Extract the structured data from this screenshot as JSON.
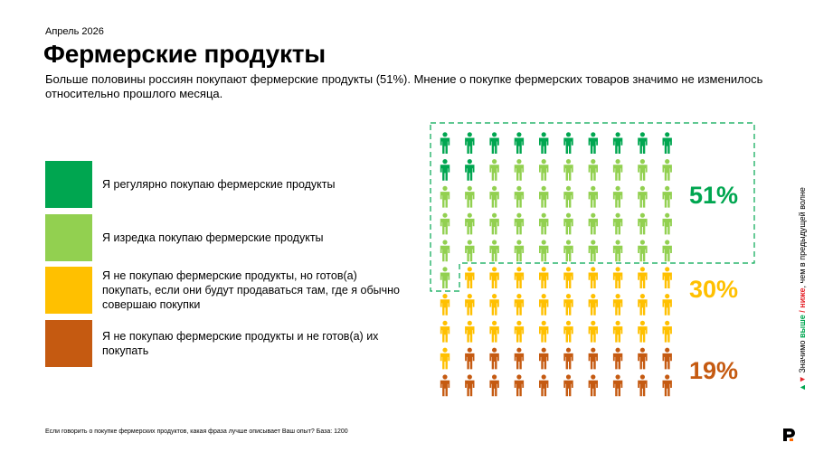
{
  "date": "Апрель 2026",
  "title": "Фермерские продукты",
  "subtitle": "Больше половины россиян покупают фермерские продукты (51%). Мнение о покупке фермерских товаров значимо не изменилось относительно прошлого месяца.",
  "legend": [
    {
      "label": "Я регулярно покупаю фермерские продукты",
      "color": "#00a650"
    },
    {
      "label": "Я изредка покупаю фермерские продукты",
      "color": "#92d050"
    },
    {
      "label": "Я не покупаю фермерские продукты, но готов(а) покупать, если они будут продаваться там, где я обычно совершаю покупки",
      "color": "#ffc000"
    },
    {
      "label": "Я не покупаю фермерские продукты и не готов(а) их покупать",
      "color": "#c55a11"
    }
  ],
  "pictogram": {
    "columns": 10,
    "rows": 10,
    "counts": [
      12,
      39,
      30,
      19
    ],
    "colors": [
      "#00a650",
      "#92d050",
      "#ffc000",
      "#c55a11"
    ],
    "highlight_color": "#00a650"
  },
  "percentages": [
    {
      "label": "51%",
      "color": "#00a650"
    },
    {
      "label": "30%",
      "color": "#ffc000"
    },
    {
      "label": "19%",
      "color": "#c55a11"
    }
  ],
  "side_note": {
    "prefix": "Значимо",
    "higher": "выше",
    "separator": "/",
    "lower": "ниже",
    "suffix": ", чем в предыдущей волне"
  },
  "footnote": "Если говорить о покупке фермерских продуктов, какая фраза лучше описывает Ваш опыт? База: 1200",
  "chart_data": {
    "type": "pictogram",
    "total_icons": 100,
    "series": [
      {
        "name": "Я регулярно покупаю фермерские продукты",
        "values": [
          12
        ]
      },
      {
        "name": "Я изредка покупаю фермерские продукты",
        "values": [
          39
        ]
      },
      {
        "name": "Я не покупаю фермерские продукты, но готов(а) покупать, если они будут продаваться там, где я обычно совершаю покупки",
        "values": [
          30
        ]
      },
      {
        "name": "Я не покупаю фермерские продукты и не готов(а) их покупать",
        "values": [
          19
        ]
      }
    ],
    "group_labels": [
      "51%",
      "30%",
      "19%"
    ]
  }
}
